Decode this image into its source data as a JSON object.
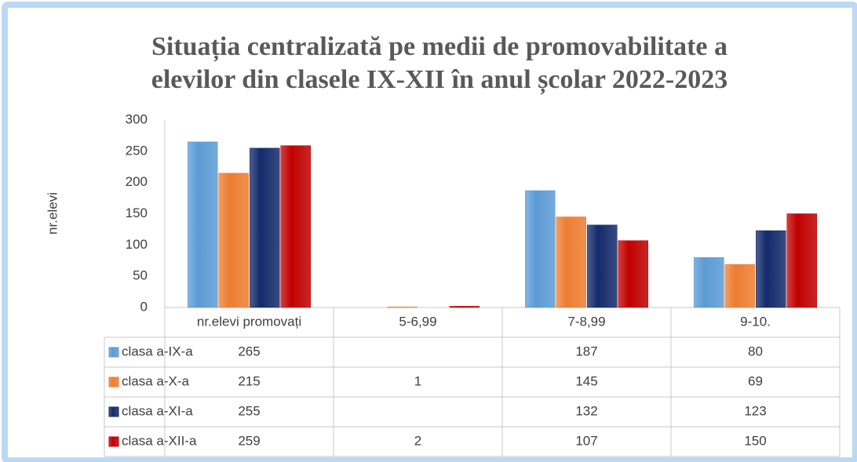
{
  "chart_data": {
    "type": "bar",
    "title": [
      "Situația centralizată pe medii de promovabilitate a",
      "elevilor din clasele IX-XII în anul școlar 2022-2023"
    ],
    "ylabel": "nr.elevi",
    "categories": [
      "nr.elevi promovați",
      "5-6,99",
      "7-8,99",
      "9-10."
    ],
    "series": [
      {
        "name": "clasa a-IX-a",
        "color": "#5b9bd5",
        "values": [
          265,
          null,
          187,
          80
        ]
      },
      {
        "name": "clasa a-X-a",
        "color": "#ed7d31",
        "values": [
          215,
          1,
          145,
          69
        ]
      },
      {
        "name": "clasa a-XI-a",
        "color": "#132a6b",
        "values": [
          255,
          null,
          132,
          123
        ]
      },
      {
        "name": "clasa a-XII-a",
        "color": "#c00000",
        "values": [
          259,
          2,
          107,
          150
        ]
      }
    ],
    "ylim": [
      0,
      300
    ],
    "yticks": [
      0,
      50,
      100,
      150,
      200,
      250,
      300
    ],
    "grid": false,
    "legend": "table"
  }
}
